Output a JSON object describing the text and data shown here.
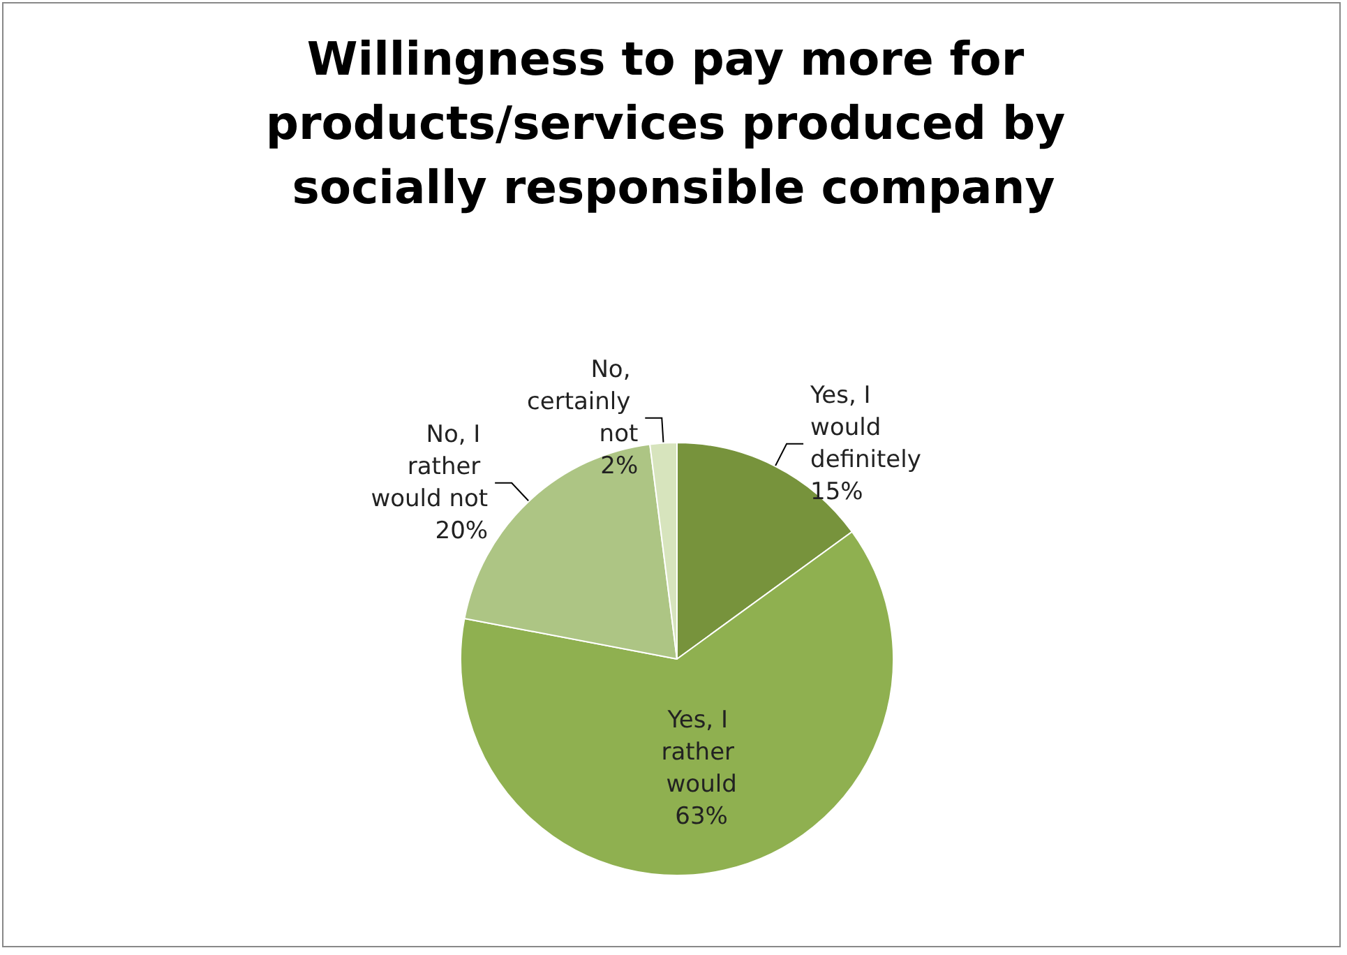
{
  "chart_data": {
    "type": "pie",
    "title": "Willingness to pay more for products/services produced by socially responsible company",
    "categories": [
      "Yes, I would definitely",
      "Yes, I rather would",
      "No, I rather would not",
      "No, certainly not"
    ],
    "values": [
      15,
      63,
      20,
      2
    ],
    "value_labels": [
      "15%",
      "63%",
      "20%",
      "2%"
    ],
    "colors": [
      "#77933c",
      "#8fb050",
      "#adc584",
      "#d7e4bd"
    ],
    "legend": false
  }
}
